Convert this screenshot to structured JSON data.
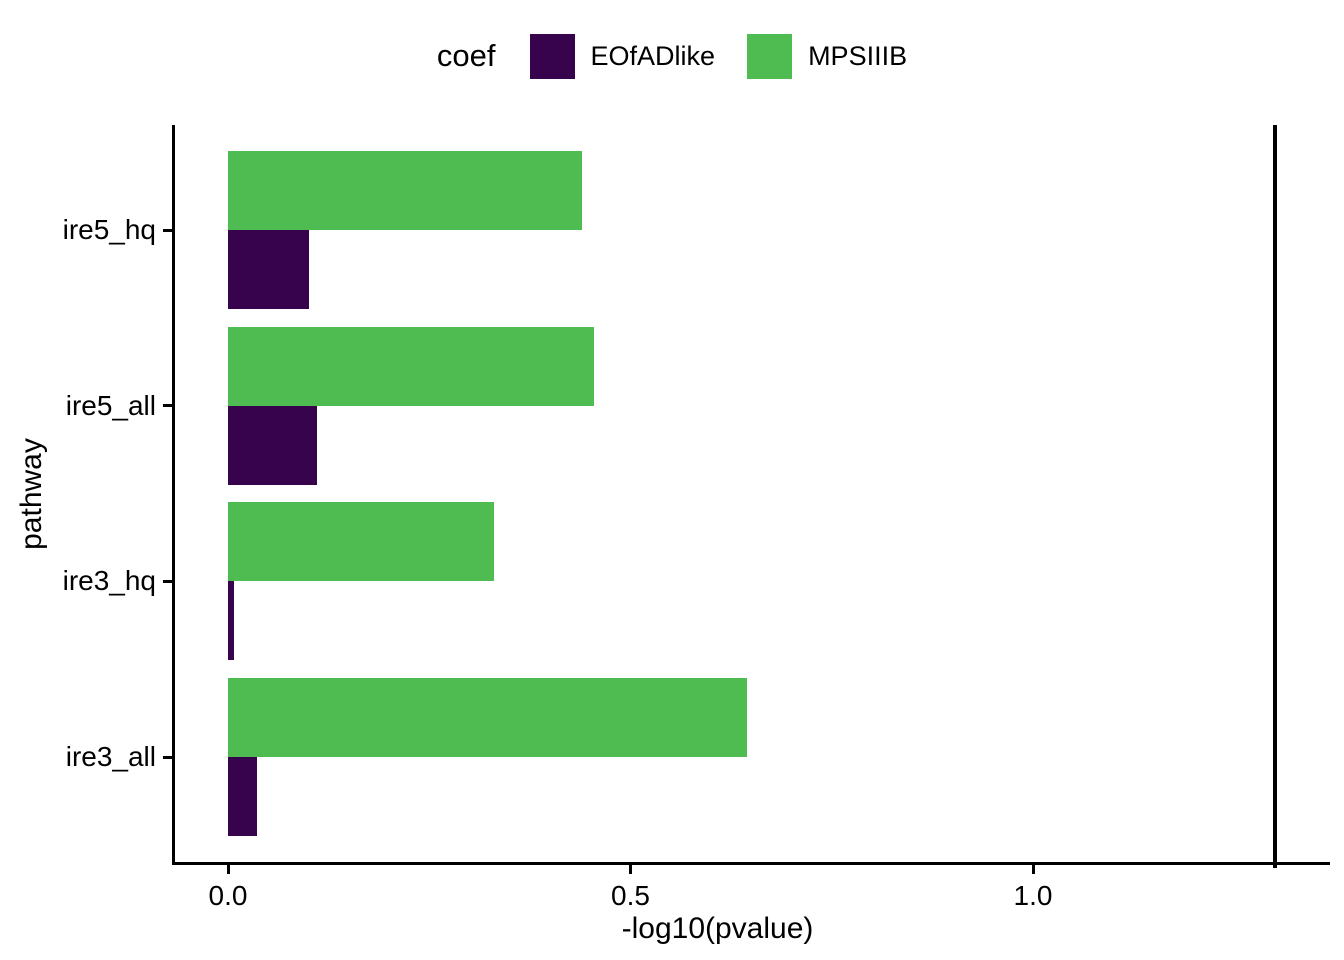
{
  "chart_data": {
    "type": "bar",
    "orientation": "horizontal",
    "legend_title": "coef",
    "legend_position": "top-center",
    "xlabel": "-log10(pvalue)",
    "ylabel": "pathway",
    "categories": [
      "ire5_hq",
      "ire5_all",
      "ire3_hq",
      "ire3_all"
    ],
    "series": [
      {
        "name": "EOfADlike",
        "color": "#36034C",
        "values": [
          0.1,
          0.11,
          0.008,
          0.036
        ]
      },
      {
        "name": "MPSIIIB",
        "color": "#4EBC51",
        "values": [
          0.44,
          0.455,
          0.33,
          0.645
        ]
      }
    ],
    "x_ticks": [
      {
        "label": "0.0",
        "value": 0.0
      },
      {
        "label": "0.5",
        "value": 0.5
      },
      {
        "label": "1.0",
        "value": 1.0
      }
    ],
    "xlim": [
      -0.065,
      1.366
    ],
    "vline": {
      "value": 1.301,
      "color": "#000000"
    },
    "grid": false,
    "background": "#ffffff",
    "axis_color": "#000000"
  }
}
